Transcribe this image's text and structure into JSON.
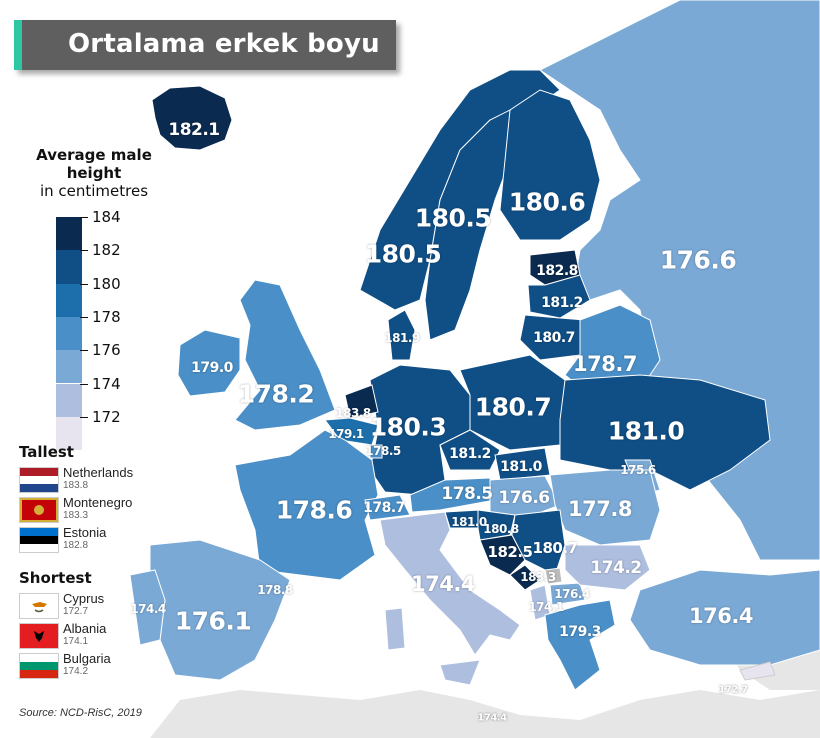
{
  "title": "Ortalama erkek boyu",
  "legend": {
    "title_bold": "Average male height",
    "title_normal": "in centimetres",
    "ticks": [
      "184",
      "182",
      "180",
      "178",
      "176",
      "174",
      "172"
    ],
    "colors": [
      "#0a2a4f",
      "#0f4f86",
      "#1d6fab",
      "#4a8fc7",
      "#7aa9d6",
      "#aebedf",
      "#e7e4f0"
    ]
  },
  "tallest": {
    "heading": "Tallest",
    "entries": [
      {
        "country": "Netherlands",
        "value": "183.8",
        "flag": "netherlands"
      },
      {
        "country": "Montenegro",
        "value": "183.3",
        "flag": "montenegro"
      },
      {
        "country": "Estonia",
        "value": "182.8",
        "flag": "estonia"
      }
    ]
  },
  "shortest": {
    "heading": "Shortest",
    "entries": [
      {
        "country": "Cyprus",
        "value": "172.7",
        "flag": "cyprus"
      },
      {
        "country": "Albania",
        "value": "174.1",
        "flag": "albania"
      },
      {
        "country": "Bulgaria",
        "value": "174.2",
        "flag": "bulgaria"
      }
    ]
  },
  "source": "Source: NCD-RisC, 2019",
  "map_values": {
    "iceland": "182.1",
    "norway_north": "180.5",
    "norway_south": "180.5",
    "sweden": "180.5",
    "finland": "180.6",
    "russia": "176.6",
    "estonia": "182.8",
    "latvia": "181.2",
    "lithuania": "180.7",
    "belarus": "178.7",
    "denmark": "181.9",
    "ireland": "179.0",
    "uk": "178.2",
    "netherlands": "183.8",
    "belgium": "179.1",
    "luxembourg": "178.5",
    "germany": "180.3",
    "poland": "180.7",
    "czechia": "181.2",
    "slovakia": "181.0",
    "ukraine": "181.0",
    "moldova": "175.6",
    "france": "178.6",
    "switzerland": "178.7",
    "austria": "178.5",
    "hungary": "176.6",
    "romania": "177.8",
    "slovenia": "181.0",
    "croatia": "180.8",
    "bosnia": "182.5",
    "serbia": "180.7",
    "montenegro": "183.3",
    "albania": "174.1",
    "north_macedonia": "176.4",
    "bulgaria": "174.2",
    "greece": "179.3",
    "turkey": "176.4",
    "cyprus": "172.7",
    "italy": "174.4",
    "spain": "176.1",
    "portugal": "174.4",
    "andorra": "178.8",
    "malta": "174.4"
  }
}
